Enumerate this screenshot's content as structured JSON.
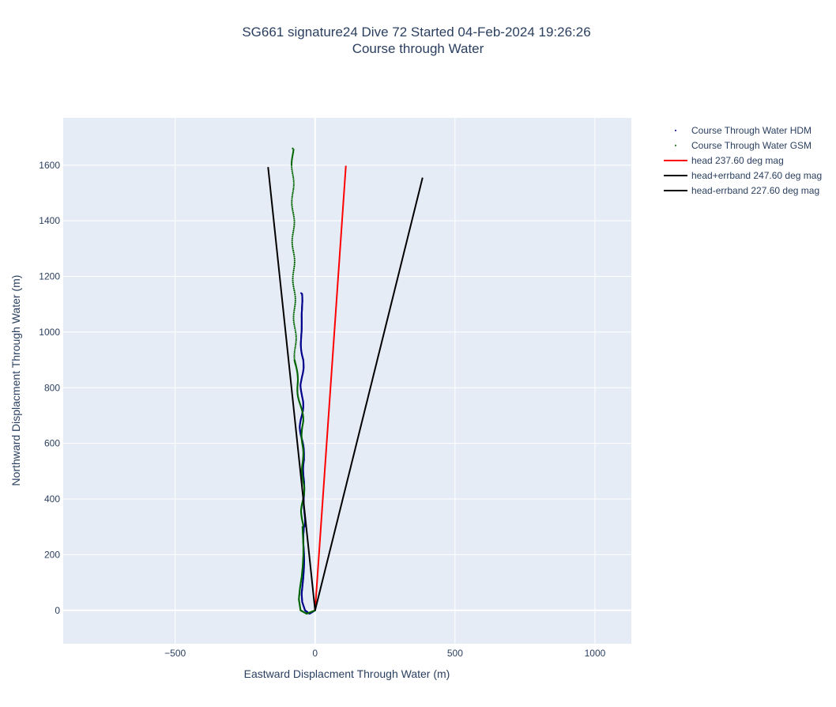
{
  "chart_data": {
    "type": "line",
    "title_line1": "SG661 signature24 Dive 72 Started 04-Feb-2024 19:26:26",
    "title_line2": "Course through Water",
    "xlabel": "Eastward Displacment Through Water (m)",
    "ylabel": "Northward Displacment Through Water (m)",
    "xlim": [
      -900,
      1130
    ],
    "ylim": [
      -120,
      1770
    ],
    "xticks": [
      -500,
      0,
      500,
      1000
    ],
    "xtick_labels": [
      "−500",
      "0",
      "500",
      "1000"
    ],
    "yticks": [
      0,
      200,
      400,
      600,
      800,
      1000,
      1200,
      1400,
      1600
    ],
    "ytick_labels": [
      "0",
      "200",
      "400",
      "600",
      "800",
      "1000",
      "1200",
      "1400",
      "1600"
    ],
    "grid": true,
    "legend_position": "top-right outside",
    "plot_background": "#e5ecf6",
    "series": [
      {
        "name": "Course Through Water HDM",
        "mode": "markers",
        "color": "#00008b",
        "x": [
          0,
          -20,
          -36,
          -46,
          -48,
          -45,
          -42,
          -40,
          -39,
          -40,
          -42,
          -42,
          -40,
          -38,
          -37,
          -38,
          -40,
          -42,
          -42,
          -40,
          -38,
          -42,
          -46,
          -50,
          -52,
          -50,
          -46,
          -44,
          -46,
          -50,
          -48,
          -44,
          -42,
          -46,
          -50,
          -52,
          -50,
          -46,
          -44,
          -46,
          -50
        ],
        "y": [
          0,
          -12,
          0,
          30,
          60,
          90,
          120,
          150,
          180,
          210,
          240,
          270,
          300,
          330,
          360,
          390,
          420,
          450,
          480,
          510,
          540,
          570,
          600,
          630,
          660,
          690,
          720,
          750,
          780,
          810,
          840,
          870,
          900,
          930,
          960,
          990,
          1020,
          1050,
          1080,
          1110,
          1140
        ]
      },
      {
        "name": "Course Through Water GSM",
        "mode": "markers",
        "color": "#006400",
        "x": [
          0,
          -30,
          -52,
          -58,
          -54,
          -48,
          -44,
          -42,
          -42,
          -44,
          -46,
          -46,
          -44,
          -42,
          -42,
          -44,
          -46,
          -46,
          -44,
          -44,
          -50,
          -56,
          -62,
          -66,
          -68,
          -70,
          -72,
          -74,
          -76,
          -78,
          -78,
          -80,
          -80,
          -80
        ],
        "y": [
          0,
          -12,
          0,
          40,
          80,
          120,
          160,
          200,
          240,
          280,
          320,
          360,
          400,
          440,
          480,
          520,
          560,
          600,
          640,
          680,
          720,
          760,
          800,
          840,
          880,
          900,
          1000,
          1100,
          1200,
          1300,
          1400,
          1500,
          1600,
          1660
        ]
      },
      {
        "name": "head 237.60 deg mag",
        "mode": "lines",
        "color": "#ff0000",
        "x": [
          0,
          110
        ],
        "y": [
          0,
          1598
        ]
      },
      {
        "name": "head+errband 247.60 deg mag",
        "mode": "lines",
        "color": "#000000",
        "x": [
          0,
          384
        ],
        "y": [
          0,
          1555
        ]
      },
      {
        "name": "head-errband 227.60 deg mag",
        "mode": "lines",
        "color": "#000000",
        "x": [
          0,
          -168
        ],
        "y": [
          0,
          1593
        ]
      }
    ]
  }
}
